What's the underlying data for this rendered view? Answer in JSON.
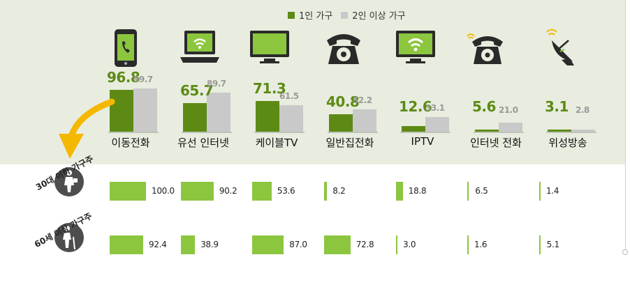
{
  "legend": {
    "series1": "1인 가구",
    "series2": "2인 이상 가구"
  },
  "colors": {
    "series1": "#5d8a15",
    "series2": "#c9c9c9",
    "row_bar": "#8cc63f",
    "panel": "#e8eddf",
    "arrow": "#f5b800"
  },
  "icons": [
    "smartphone-icon",
    "laptop-wifi-icon",
    "tv-icon",
    "rotary-phone-icon",
    "tv-wifi-icon",
    "wifi-phone-icon",
    "satellite-dish-icon"
  ],
  "chart_data": [
    {
      "type": "bar",
      "categories": [
        "이동전화",
        "유선 인터넷",
        "케이블TV",
        "일반집전화",
        "IPTV",
        "인터넷 전화",
        "위성방송"
      ],
      "series": [
        {
          "name": "1인 가구",
          "values": [
            96.8,
            65.7,
            71.3,
            40.8,
            12.6,
            5.6,
            3.1
          ]
        },
        {
          "name": "2인 이상 가구",
          "values": [
            99.7,
            89.7,
            61.5,
            52.2,
            33.1,
            21.0,
            2.8
          ]
        }
      ],
      "value_labels": {
        "series1": [
          "96.8",
          "65.7",
          "71.3",
          "40.8",
          "12.6",
          "5.6",
          "3.1"
        ],
        "series2": [
          "99.7",
          "89.7",
          "61.5",
          "52.2",
          "33.1",
          "21.0",
          "2.8"
        ]
      },
      "ylim": [
        0,
        100
      ],
      "legend_position": "top-center",
      "grid": false
    },
    {
      "type": "bar",
      "categories": [
        "이동전화",
        "유선 인터넷",
        "케이블TV",
        "일반집전화",
        "IPTV",
        "인터넷 전화",
        "위성방송"
      ],
      "series": [
        {
          "name": "30대 이하 가구주",
          "values": [
            100.0,
            90.2,
            53.6,
            8.2,
            18.8,
            6.5,
            1.4
          ]
        },
        {
          "name": "60세 이상 가구주",
          "values": [
            92.4,
            38.9,
            87.0,
            72.8,
            3.0,
            1.6,
            5.1
          ]
        }
      ],
      "value_labels": {
        "row1": [
          "100.0",
          "90.2",
          "53.6",
          "8.2",
          "18.8",
          "6.5",
          "1.4"
        ],
        "row2": [
          "92.4",
          "38.9",
          "87.0",
          "72.8",
          "3.0",
          "1.6",
          "5.1"
        ]
      },
      "ylim": [
        0,
        100
      ],
      "orientation": "horizontal",
      "grid": false
    }
  ]
}
